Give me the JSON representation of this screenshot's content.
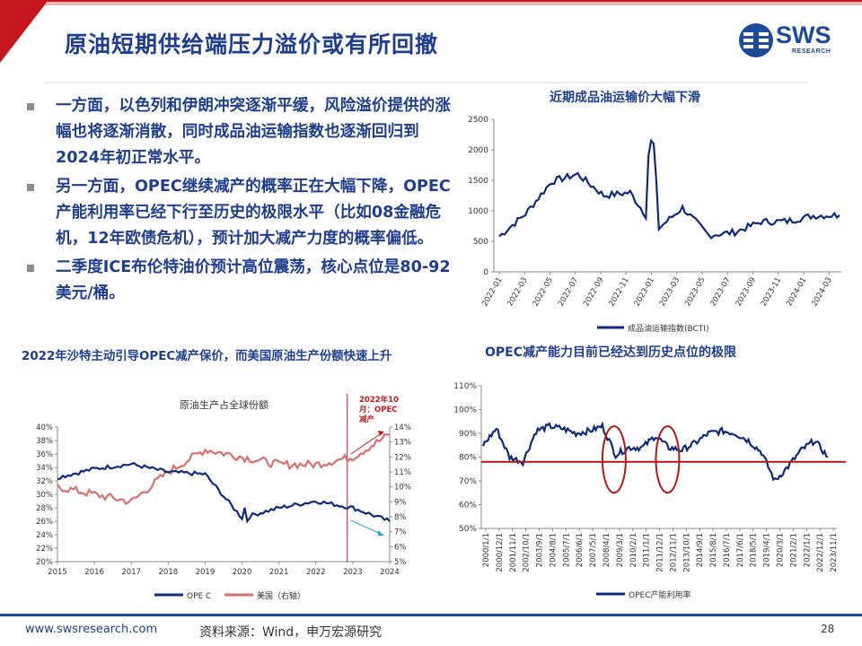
{
  "header": {
    "title": "原油短期供给端压力溢价或有所回撤",
    "logo_text": "SWS",
    "logo_sub": "RESEARCH"
  },
  "bullets": [
    "一方面，以色列和伊朗冲突逐渐平缓，风险溢价提供的涨幅也将逐渐消散，同时成品油运输指数也逐渐回归到2024年初正常水平。",
    "另一方面，OPEC继续减产的概率正在大幅下降，OPEC产能利用率已经下行至历史的极限水平（比如08金融危机，12年欧债危机），预计加大减产力度的概率偏低。",
    "二季度ICE布伦特油价预计高位震荡，核心点位是80-92美元/桶。"
  ],
  "charts": {
    "bcti": {
      "title": "近期成品油运输价大幅下滑",
      "legend": "成品油运输指数(BCTI)"
    },
    "share": {
      "title": "2022年沙特主动引导OPEC减产保价，而美国原油生产份额快速上升",
      "inner_title": "原油生产占全球份额",
      "annotation_lines": [
        "2022年10",
        "月：OPEC",
        "减产"
      ],
      "legend_opec": "OPE C",
      "legend_us": "美国（右轴）"
    },
    "util": {
      "title": "OPEC减产能力目前已经达到历史点位的极限",
      "legend": "OPEC产能利用率"
    }
  },
  "colors": {
    "brand_blue": "#1f3e8e",
    "series_blue": "#0f2a7a",
    "series_red": "#d9706e",
    "reference_red": "#b01818",
    "header_red": "#c4161c"
  },
  "chart_data": [
    {
      "type": "line",
      "x": [
        "2022-01",
        "2022-03",
        "2022-05",
        "2022-07",
        "2022-09",
        "2022-11",
        "2023-01",
        "2023-03",
        "2023-05",
        "2023-07",
        "2023-09",
        "2023-11",
        "2024-01",
        "2024-03"
      ],
      "series": [
        {
          "name": "成品油运输指数(BCTI)",
          "values": [
            580,
            950,
            1480,
            1600,
            1250,
            1300,
            680,
            1050,
            600,
            650,
            820,
            830,
            920,
            930
          ]
        }
      ],
      "ylim": [
        0,
        2500
      ],
      "yticks": [
        0,
        500,
        1000,
        1500,
        2000,
        2500
      ],
      "title": "近期成品油运输价大幅下滑"
    },
    {
      "type": "line",
      "x": [
        "2015",
        "2016",
        "2017",
        "2018",
        "2019",
        "2020",
        "2021",
        "2022",
        "2023",
        "2024"
      ],
      "series": [
        {
          "name": "OPE C",
          "axis": "left",
          "values": [
            32.5,
            33.8,
            34.5,
            33.3,
            33.0,
            26.5,
            28.0,
            29.0,
            28.0,
            26.0
          ]
        },
        {
          "name": "美国（右轴）",
          "axis": "right",
          "values": [
            10.0,
            9.5,
            9.0,
            11.0,
            12.5,
            12.0,
            11.5,
            11.5,
            12.0,
            13.5
          ]
        }
      ],
      "ylim_left": [
        20,
        40
      ],
      "ylim_right": [
        5,
        14
      ],
      "yticks_left": [
        "20%",
        "22%",
        "24%",
        "26%",
        "28%",
        "30%",
        "32%",
        "34%",
        "36%",
        "38%",
        "40%"
      ],
      "yticks_right": [
        "5%",
        "6%",
        "7%",
        "8%",
        "9%",
        "10%",
        "11%",
        "12%",
        "13%",
        "14%"
      ],
      "title": "原油生产占全球份额"
    },
    {
      "type": "line",
      "x": [
        "2000/1/1",
        "2000/12/1",
        "2001/11/1",
        "2002/10/1",
        "2003/9/1",
        "2004/8/1",
        "2005/7/1",
        "2006/6/1",
        "2007/5/1",
        "2008/4/1",
        "2009/3/1",
        "2010/2/1",
        "2011/1/1",
        "2011/12/1",
        "2012/11/1",
        "2013/10/1",
        "2014/9/1",
        "2015/8/1",
        "2016/7/1",
        "2017/6/1",
        "2018/5/1",
        "2019/4/1",
        "2020/3/1",
        "2021/2/1",
        "2022/1/1",
        "2022/12/1",
        "2023/11/1"
      ],
      "series": [
        {
          "name": "OPEC产能利用率",
          "values": [
            85,
            92,
            80,
            78,
            91,
            93,
            92,
            90,
            91,
            93,
            81,
            84,
            84,
            89,
            84,
            83,
            86,
            90,
            91,
            90,
            87,
            82,
            70,
            76,
            83,
            87,
            80
          ]
        }
      ],
      "reference_line": 78,
      "ylim": [
        50,
        110
      ],
      "yticks": [
        "50%",
        "60%",
        "70%",
        "80%",
        "90%",
        "100%",
        "110%"
      ]
    }
  ],
  "footer": {
    "url": "www.swsresearch.com",
    "source": "资料来源：Wind，申万宏源研究",
    "page": "28"
  }
}
